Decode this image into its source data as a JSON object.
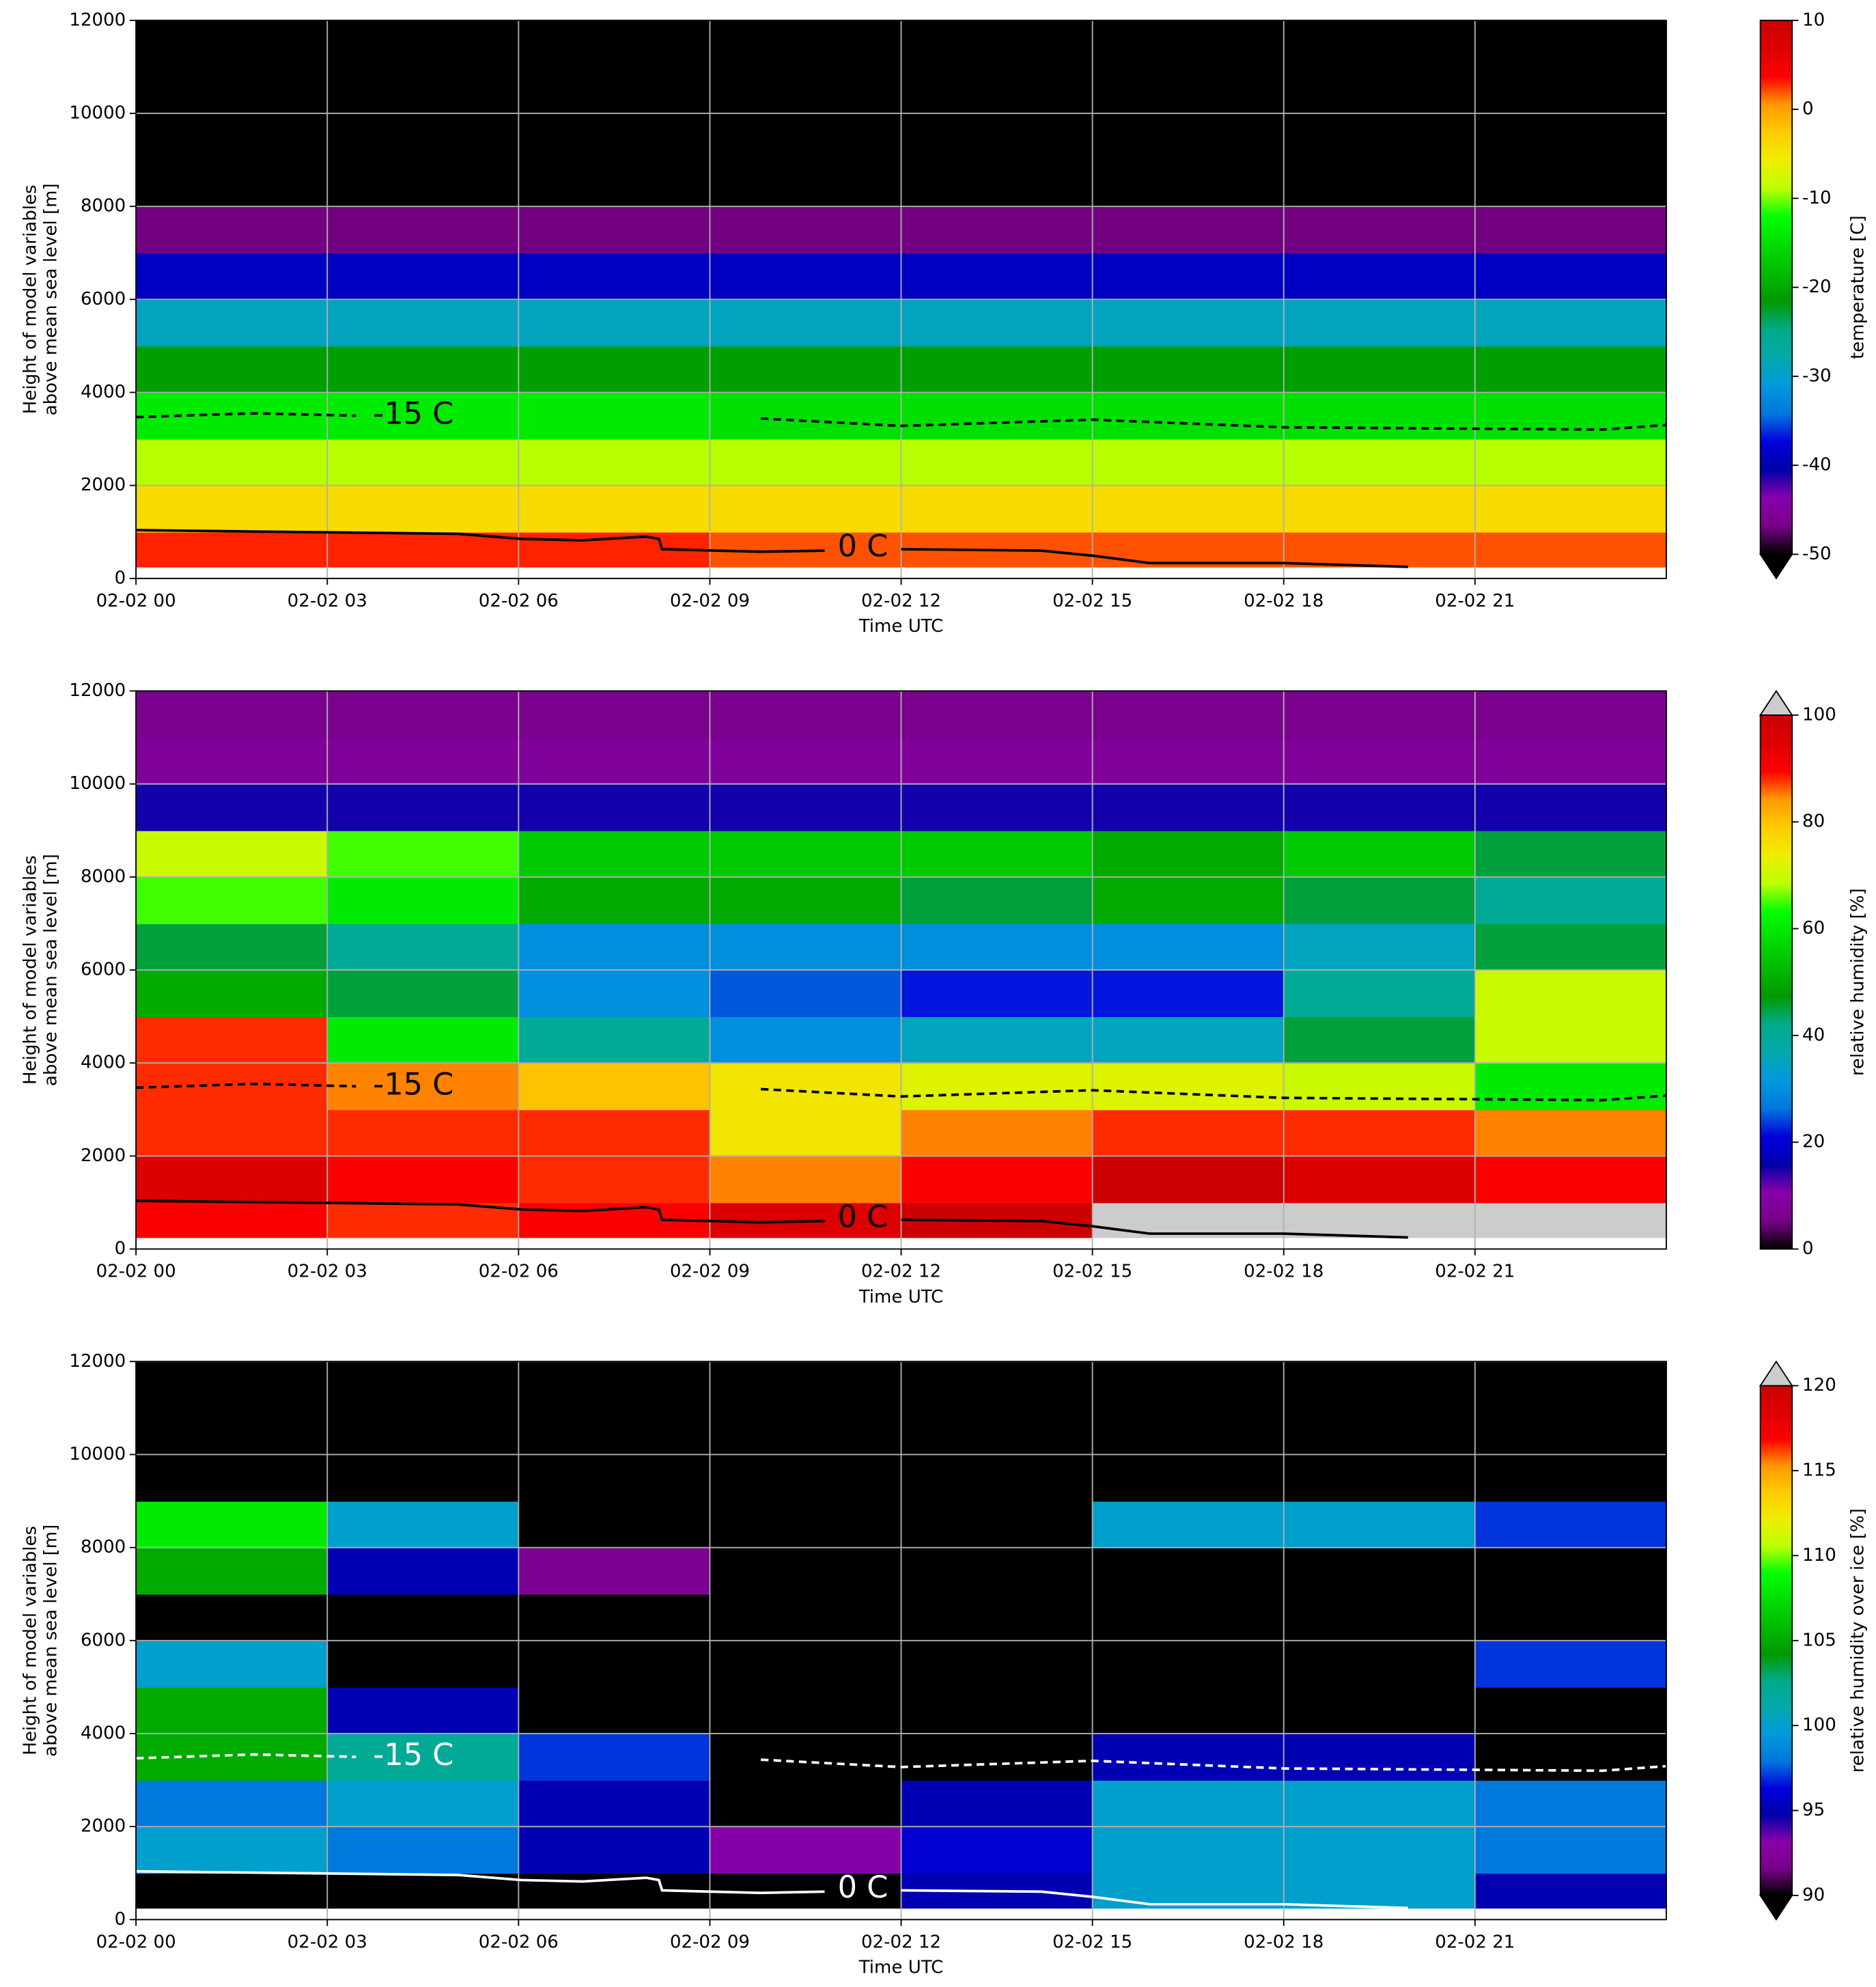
{
  "chart_data": [
    {
      "type": "heatmap",
      "xlabel": "Time UTC",
      "ylabel": [
        "Height of model variables",
        "above mean sea level [m]"
      ],
      "colorbar_label": "temperature [C]",
      "xlim": [
        0,
        24
      ],
      "xticks": [
        {
          "value": 0,
          "label": "02-02 00"
        },
        {
          "value": 3,
          "label": "02-02 03"
        },
        {
          "value": 6,
          "label": "02-02 06"
        },
        {
          "value": 9,
          "label": "02-02 09"
        },
        {
          "value": 12,
          "label": "02-02 12"
        },
        {
          "value": 15,
          "label": "02-02 15"
        },
        {
          "value": 18,
          "label": "02-02 18"
        },
        {
          "value": 21,
          "label": "02-02 21"
        }
      ],
      "ylim": [
        0,
        12000
      ],
      "yticks": [
        0,
        2000,
        4000,
        6000,
        8000,
        10000,
        12000
      ],
      "grid": true,
      "clim": [
        -50,
        10
      ],
      "cticks": [
        -50,
        -40,
        -30,
        -20,
        -10,
        0,
        10
      ],
      "colormap": [
        "#000000",
        "#780088",
        "#8800aa",
        "#0000aa",
        "#0000dd",
        "#0077dd",
        "#0099dd",
        "#00aaaa",
        "#00aa88",
        "#009900",
        "#00bb00",
        "#00dd00",
        "#00ff00",
        "#bbff00",
        "#eeee00",
        "#ffcc00",
        "#ff9900",
        "#ff0000",
        "#dd0000",
        "#cc0000"
      ],
      "under_color": "#000000",
      "x_edges": [
        0,
        3,
        6,
        9,
        12,
        15,
        18,
        21,
        24
      ],
      "y_edges": [
        250,
        1000,
        2000,
        3000,
        4000,
        5000,
        6000,
        7000,
        8000,
        9000,
        10000,
        11000,
        12000
      ],
      "values": [
        [
          3,
          3,
          3,
          2,
          2,
          2,
          2,
          2
        ],
        [
          -4,
          -4,
          -4,
          -4,
          -4,
          -4,
          -4,
          -4
        ],
        [
          -9,
          -9,
          -9,
          -9,
          -9,
          -9,
          -9,
          -9
        ],
        [
          -14,
          -14,
          -14,
          -15,
          -15,
          -15,
          -15,
          -15
        ],
        [
          -21,
          -21,
          -21,
          -21,
          -21,
          -21,
          -21,
          -21
        ],
        [
          -29,
          -29,
          -29,
          -29,
          -29,
          -29,
          -29,
          -29
        ],
        [
          -39,
          -39,
          -39,
          -39,
          -39,
          -39,
          -39,
          -39
        ],
        [
          -47,
          -47,
          -47,
          -47,
          -47,
          -47,
          -47,
          -47
        ],
        [
          -55,
          -55,
          -55,
          -55,
          -55,
          -55,
          -55,
          -55
        ],
        [
          -55,
          -55,
          -55,
          -55,
          -55,
          -55,
          -55,
          -55
        ],
        [
          -55,
          -55,
          -55,
          -55,
          -55,
          -55,
          -55,
          -55
        ],
        [
          -55,
          -55,
          -55,
          -55,
          -55,
          -55,
          -55,
          -55
        ]
      ],
      "contour_color": "#000000",
      "contours": [
        {
          "name": "-15 C",
          "dashed": true,
          "label_x": 4.35,
          "label_y": 3500,
          "x": [
            0,
            1.85,
            3.45,
            5.35,
            9.8,
            12,
            15,
            18,
            23,
            24
          ],
          "y": [
            3470,
            3550,
            3500,
            null,
            3440,
            3280,
            3415,
            3250,
            3200,
            3300
          ]
        },
        {
          "name": "0 C",
          "dashed": false,
          "label_x": 11.4,
          "label_y": 650,
          "x": [
            0,
            5.05,
            6.05,
            7,
            8,
            8.2,
            8.25,
            9.8,
            10.8,
            11,
            12,
            14.2,
            15,
            15.9,
            18,
            19.95
          ],
          "y": [
            1040,
            960,
            850,
            820,
            900,
            850,
            630,
            575,
            600,
            null,
            630,
            600,
            490,
            330,
            330,
            250
          ]
        }
      ]
    },
    {
      "type": "heatmap",
      "xlabel": "Time UTC",
      "ylabel": [
        "Height of model variables",
        "above mean sea level [m]"
      ],
      "colorbar_label": "relative humidity [%]",
      "xlim": [
        0,
        24
      ],
      "xticks": [
        {
          "value": 0,
          "label": "02-02 00"
        },
        {
          "value": 3,
          "label": "02-02 03"
        },
        {
          "value": 6,
          "label": "02-02 06"
        },
        {
          "value": 9,
          "label": "02-02 09"
        },
        {
          "value": 12,
          "label": "02-02 12"
        },
        {
          "value": 15,
          "label": "02-02 15"
        },
        {
          "value": 18,
          "label": "02-02 18"
        },
        {
          "value": 21,
          "label": "02-02 21"
        }
      ],
      "ylim": [
        0,
        12000
      ],
      "yticks": [
        0,
        2000,
        4000,
        6000,
        8000,
        10000,
        12000
      ],
      "grid": true,
      "clim": [
        0,
        100
      ],
      "cticks": [
        0,
        20,
        40,
        60,
        80,
        100
      ],
      "colormap": [
        "#000000",
        "#780088",
        "#8800aa",
        "#0000aa",
        "#0000dd",
        "#0077dd",
        "#0099dd",
        "#00aaaa",
        "#00aa88",
        "#009900",
        "#00bb00",
        "#00dd00",
        "#00ff00",
        "#bbff00",
        "#eeee00",
        "#ffcc00",
        "#ff9900",
        "#ff0000",
        "#dd0000",
        "#cc0000"
      ],
      "over_color": "#cccccc",
      "x_edges": [
        0,
        3,
        6,
        9,
        12,
        15,
        18,
        21,
        24
      ],
      "y_edges": [
        250,
        1000,
        2000,
        3000,
        4000,
        5000,
        6000,
        7000,
        8000,
        9000,
        10000,
        11000,
        12000
      ],
      "values": [
        [
          90,
          88,
          90,
          95,
          100,
          105,
          105,
          105
        ],
        [
          95,
          90,
          88,
          85,
          90,
          100,
          95,
          90
        ],
        [
          88,
          88,
          88,
          75,
          85,
          88,
          88,
          85
        ],
        [
          88,
          85,
          80,
          75,
          72,
          72,
          70,
          60
        ],
        [
          88,
          60,
          40,
          30,
          35,
          35,
          45,
          70
        ],
        [
          50,
          45,
          30,
          25,
          22,
          22,
          40,
          70
        ],
        [
          45,
          40,
          30,
          30,
          30,
          30,
          35,
          45
        ],
        [
          65,
          60,
          50,
          50,
          45,
          50,
          45,
          40
        ],
        [
          70,
          65,
          55,
          55,
          55,
          50,
          55,
          45
        ],
        [
          15,
          15,
          15,
          15,
          15,
          15,
          15,
          15
        ],
        [
          8,
          8,
          8,
          8,
          8,
          8,
          8,
          8
        ],
        [
          6,
          6,
          6,
          6,
          6,
          6,
          6,
          6
        ]
      ],
      "contour_color": "#000000",
      "contours": [
        {
          "name": "-15 C",
          "dashed": true,
          "label_x": 4.35,
          "label_y": 3500,
          "x": [
            0,
            1.85,
            3.45,
            5.35,
            9.8,
            12,
            15,
            18,
            23,
            24
          ],
          "y": [
            3470,
            3550,
            3500,
            null,
            3440,
            3280,
            3415,
            3250,
            3200,
            3300
          ]
        },
        {
          "name": "0 C",
          "dashed": false,
          "label_x": 11.4,
          "label_y": 650,
          "x": [
            0,
            5.05,
            6.05,
            7,
            8,
            8.2,
            8.25,
            9.8,
            10.8,
            11,
            12,
            14.2,
            15,
            15.9,
            18,
            19.95
          ],
          "y": [
            1040,
            960,
            850,
            820,
            900,
            850,
            630,
            575,
            600,
            null,
            630,
            600,
            490,
            330,
            330,
            250
          ]
        }
      ]
    },
    {
      "type": "heatmap",
      "xlabel": "Time UTC",
      "ylabel": [
        "Height of model variables",
        "above mean sea level [m]"
      ],
      "colorbar_label": "relative humidity over ice [%]",
      "xlim": [
        0,
        24
      ],
      "xticks": [
        {
          "value": 0,
          "label": "02-02 00"
        },
        {
          "value": 3,
          "label": "02-02 03"
        },
        {
          "value": 6,
          "label": "02-02 06"
        },
        {
          "value": 9,
          "label": "02-02 09"
        },
        {
          "value": 12,
          "label": "02-02 12"
        },
        {
          "value": 15,
          "label": "02-02 15"
        },
        {
          "value": 18,
          "label": "02-02 18"
        },
        {
          "value": 21,
          "label": "02-02 21"
        }
      ],
      "ylim": [
        0,
        12000
      ],
      "yticks": [
        0,
        2000,
        4000,
        6000,
        8000,
        10000,
        12000
      ],
      "grid": true,
      "clim": [
        90,
        120
      ],
      "cticks": [
        90,
        95,
        100,
        105,
        110,
        115,
        120
      ],
      "colormap": [
        "#000000",
        "#780088",
        "#8800aa",
        "#0000aa",
        "#0000dd",
        "#0077dd",
        "#0099dd",
        "#00aaaa",
        "#00aa88",
        "#009900",
        "#00bb00",
        "#00dd00",
        "#00ff00",
        "#bbff00",
        "#eeee00",
        "#ffcc00",
        "#ff9900",
        "#ff0000",
        "#dd0000",
        "#cc0000"
      ],
      "under_color": "#000000",
      "over_color": "#cccccc",
      "x_edges": [
        0,
        3,
        6,
        9,
        12,
        15,
        18,
        21,
        24
      ],
      "y_edges": [
        250,
        1000,
        2000,
        3000,
        4000,
        5000,
        6000,
        7000,
        8000,
        9000,
        10000,
        11000,
        12000
      ],
      "values": [
        [
          85,
          85,
          85,
          90,
          95,
          100,
          100,
          95
        ],
        [
          100,
          98,
          95,
          93,
          96,
          100,
          100,
          98
        ],
        [
          98,
          100,
          95,
          85,
          95,
          100,
          100,
          98
        ],
        [
          105,
          102,
          97,
          85,
          85,
          95,
          95,
          85
        ],
        [
          105,
          95,
          85,
          85,
          85,
          85,
          85,
          85
        ],
        [
          100,
          85,
          85,
          85,
          85,
          85,
          85,
          97
        ],
        [
          85,
          85,
          85,
          85,
          85,
          85,
          85,
          85
        ],
        [
          105,
          95,
          92,
          85,
          85,
          85,
          85,
          85
        ],
        [
          108,
          100,
          85,
          85,
          85,
          100,
          100,
          97
        ],
        [
          85,
          85,
          85,
          85,
          85,
          85,
          85,
          85
        ],
        [
          85,
          85,
          85,
          85,
          85,
          85,
          85,
          85
        ],
        [
          85,
          85,
          85,
          85,
          85,
          85,
          85,
          85
        ]
      ],
      "contour_color": "#ffffff",
      "contours": [
        {
          "name": "-15 C",
          "dashed": true,
          "label_x": 4.35,
          "label_y": 3500,
          "x": [
            0,
            1.85,
            3.45,
            5.35,
            9.8,
            12,
            15,
            18,
            23,
            24
          ],
          "y": [
            3470,
            3550,
            3500,
            null,
            3440,
            3280,
            3415,
            3250,
            3200,
            3300
          ]
        },
        {
          "name": "0 C",
          "dashed": false,
          "label_x": 11.4,
          "label_y": 650,
          "x": [
            0,
            5.05,
            6.05,
            7,
            8,
            8.2,
            8.25,
            9.8,
            10.8,
            11,
            12,
            14.2,
            15,
            15.9,
            18,
            19.95
          ],
          "y": [
            1040,
            960,
            850,
            820,
            900,
            850,
            630,
            575,
            600,
            null,
            630,
            600,
            490,
            330,
            330,
            250
          ]
        }
      ]
    }
  ]
}
